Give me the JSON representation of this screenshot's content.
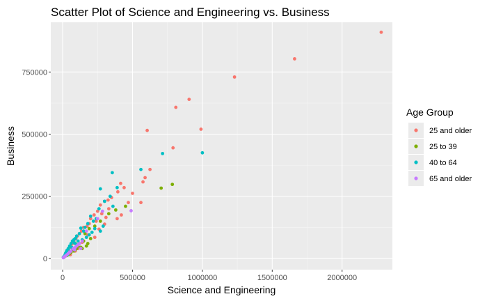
{
  "chart_data": {
    "type": "scatter",
    "title": "Scatter Plot of Science and Engineering vs. Business",
    "xlabel": "Science and Engineering",
    "ylabel": "Business",
    "xlim": [
      -85000,
      2360000
    ],
    "ylim": [
      -45000,
      950000
    ],
    "x_ticks": [
      0,
      500000,
      1000000,
      1500000,
      2000000
    ],
    "x_tick_labels": [
      "0",
      "500000",
      "1000000",
      "1500000",
      "2000000"
    ],
    "y_ticks": [
      0,
      250000,
      500000,
      750000
    ],
    "y_tick_labels": [
      "0",
      "250000",
      "500000",
      "750000"
    ],
    "grid": true,
    "legend": {
      "title": "Age Group",
      "position": "right"
    },
    "colors": {
      "panel": "#ebebeb",
      "grid_major": "#ffffff",
      "grid_minor": "#f5f5f5"
    },
    "series": [
      {
        "name": "25 and older",
        "color": "#f8766d",
        "points": [
          [
            2280000,
            910000
          ],
          [
            1660000,
            803000
          ],
          [
            1230000,
            730000
          ],
          [
            905000,
            640000
          ],
          [
            810000,
            608000
          ],
          [
            605000,
            515000
          ],
          [
            990000,
            520000
          ],
          [
            790000,
            445000
          ],
          [
            625000,
            358000
          ],
          [
            590000,
            325000
          ],
          [
            575000,
            308000
          ],
          [
            415000,
            302000
          ],
          [
            440000,
            285000
          ],
          [
            395000,
            268000
          ],
          [
            500000,
            262000
          ],
          [
            350000,
            245000
          ],
          [
            325000,
            235000
          ],
          [
            300000,
            230000
          ],
          [
            470000,
            225000
          ],
          [
            560000,
            225000
          ],
          [
            270000,
            215000
          ],
          [
            330000,
            200000
          ],
          [
            250000,
            190000
          ],
          [
            280000,
            180000
          ],
          [
            225000,
            175000
          ],
          [
            420000,
            175000
          ],
          [
            310000,
            165000
          ],
          [
            200000,
            160000
          ],
          [
            390000,
            160000
          ],
          [
            240000,
            150000
          ],
          [
            190000,
            140000
          ],
          [
            300000,
            138000
          ],
          [
            175000,
            130000
          ],
          [
            150000,
            125000
          ],
          [
            260000,
            118000
          ],
          [
            135000,
            110000
          ],
          [
            120000,
            100000
          ],
          [
            180000,
            95000
          ],
          [
            105000,
            90000
          ],
          [
            230000,
            85000
          ],
          [
            95000,
            80000
          ],
          [
            80000,
            70000
          ],
          [
            140000,
            65000
          ],
          [
            70000,
            60000
          ],
          [
            60000,
            50000
          ],
          [
            50000,
            45000
          ],
          [
            110000,
            40000
          ],
          [
            40000,
            35000
          ],
          [
            30000,
            25000
          ],
          [
            90000,
            30000
          ],
          [
            20000,
            18000
          ],
          [
            55000,
            15000
          ],
          [
            15000,
            10000
          ],
          [
            8000,
            5000
          ]
        ]
      },
      {
        "name": "25 to 39",
        "color": "#7cae00",
        "points": [
          [
            785000,
            298000
          ],
          [
            705000,
            283000
          ],
          [
            450000,
            210000
          ],
          [
            380000,
            195000
          ],
          [
            330000,
            180000
          ],
          [
            270000,
            150000
          ],
          [
            230000,
            130000
          ],
          [
            190000,
            120000
          ],
          [
            160000,
            100000
          ],
          [
            200000,
            80000
          ],
          [
            150000,
            70000
          ],
          [
            180000,
            60000
          ],
          [
            120000,
            60000
          ],
          [
            110000,
            50000
          ],
          [
            170000,
            50000
          ],
          [
            130000,
            45000
          ],
          [
            100000,
            40000
          ],
          [
            90000,
            35000
          ],
          [
            80000,
            30000
          ],
          [
            140000,
            40000
          ],
          [
            60000,
            25000
          ],
          [
            50000,
            20000
          ],
          [
            40000,
            15000
          ],
          [
            30000,
            12000
          ],
          [
            20000,
            10000
          ],
          [
            10000,
            5000
          ],
          [
            70000,
            42000
          ],
          [
            95000,
            58000
          ]
        ]
      },
      {
        "name": "40 to 64",
        "color": "#00bfc4",
        "points": [
          [
            1000000,
            425000
          ],
          [
            715000,
            422000
          ],
          [
            560000,
            358000
          ],
          [
            355000,
            345000
          ],
          [
            390000,
            285000
          ],
          [
            270000,
            280000
          ],
          [
            340000,
            250000
          ],
          [
            300000,
            230000
          ],
          [
            360000,
            210000
          ],
          [
            260000,
            200000
          ],
          [
            200000,
            170000
          ],
          [
            240000,
            160000
          ],
          [
            220000,
            150000
          ],
          [
            180000,
            140000
          ],
          [
            290000,
            130000
          ],
          [
            160000,
            125000
          ],
          [
            130000,
            122000
          ],
          [
            230000,
            120000
          ],
          [
            150000,
            110000
          ],
          [
            120000,
            100000
          ],
          [
            190000,
            95000
          ],
          [
            100000,
            90000
          ],
          [
            170000,
            85000
          ],
          [
            90000,
            80000
          ],
          [
            80000,
            75000
          ],
          [
            140000,
            75000
          ],
          [
            70000,
            70000
          ],
          [
            110000,
            70000
          ],
          [
            60000,
            60000
          ],
          [
            85000,
            62000
          ],
          [
            50000,
            50000
          ],
          [
            100000,
            55000
          ],
          [
            40000,
            40000
          ],
          [
            65000,
            45000
          ],
          [
            30000,
            32000
          ],
          [
            55000,
            30000
          ],
          [
            25000,
            25000
          ],
          [
            20000,
            20000
          ],
          [
            35000,
            15000
          ],
          [
            15000,
            12000
          ],
          [
            10000,
            8000
          ],
          [
            5000,
            5000
          ],
          [
            270000,
            110000
          ],
          [
            210000,
            105000
          ]
        ]
      },
      {
        "name": "65 and older",
        "color": "#c77cff",
        "points": [
          [
            490000,
            192000
          ],
          [
            285000,
            190000
          ],
          [
            250000,
            160000
          ],
          [
            170000,
            110000
          ],
          [
            140000,
            70000
          ],
          [
            120000,
            60000
          ],
          [
            110000,
            55000
          ],
          [
            100000,
            50000
          ],
          [
            90000,
            45000
          ],
          [
            75000,
            40000
          ],
          [
            60000,
            30000
          ],
          [
            130000,
            40000
          ],
          [
            50000,
            25000
          ],
          [
            40000,
            20000
          ],
          [
            30000,
            15000
          ],
          [
            20000,
            10000
          ],
          [
            15000,
            8000
          ],
          [
            10000,
            5000
          ],
          [
            5000,
            3000
          ],
          [
            85000,
            35000
          ]
        ]
      }
    ]
  }
}
